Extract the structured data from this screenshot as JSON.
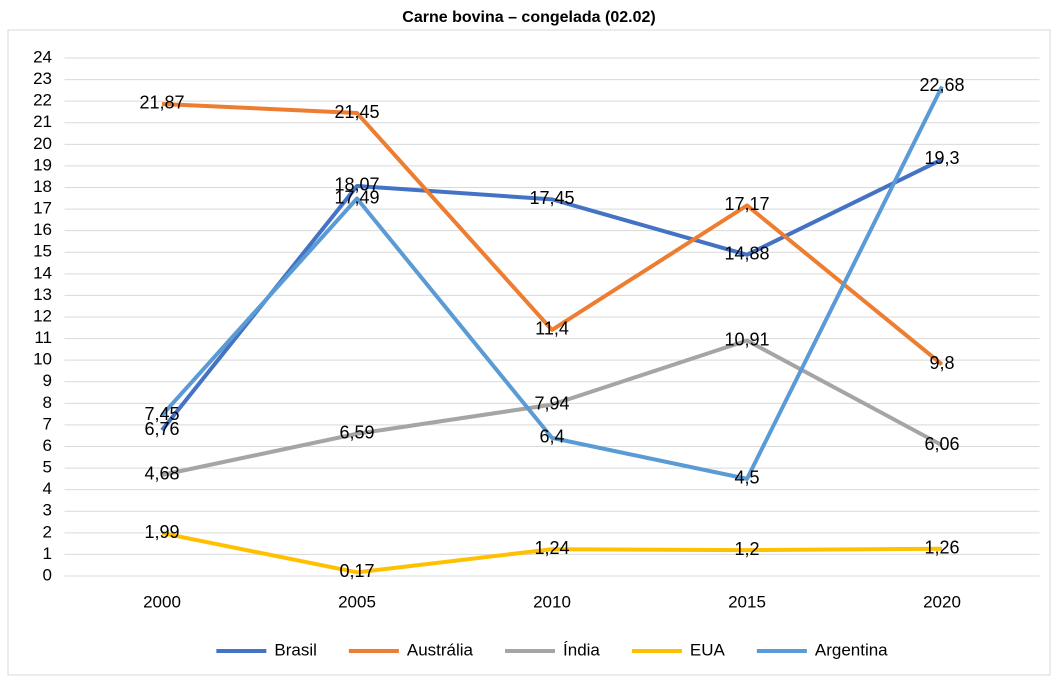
{
  "chart_data": {
    "type": "line",
    "title": "Carne bovina – congelada (02.02)",
    "categories": [
      "2000",
      "2005",
      "2010",
      "2015",
      "2020"
    ],
    "series": [
      {
        "name": "Brasil",
        "color": "#4472c4",
        "values": [
          6.76,
          18.07,
          17.45,
          14.88,
          19.3
        ],
        "value_labels": [
          "6,76",
          "18,07",
          "17,45",
          "14,88",
          "19,3"
        ]
      },
      {
        "name": "Austrália",
        "color": "#ed7d31",
        "values": [
          21.87,
          21.45,
          11.4,
          17.17,
          9.8
        ],
        "value_labels": [
          "21,87",
          "21,45",
          "11,4",
          "17,17",
          "9,8"
        ]
      },
      {
        "name": "Índia",
        "color": "#a5a5a5",
        "values": [
          4.68,
          6.59,
          7.94,
          10.91,
          6.06
        ],
        "value_labels": [
          "4,68",
          "6,59",
          "7,94",
          "10,91",
          "6,06"
        ]
      },
      {
        "name": "EUA",
        "color": "#ffc000",
        "values": [
          1.99,
          0.17,
          1.24,
          1.2,
          1.26
        ],
        "value_labels": [
          "1,99",
          "0,17",
          "1,24",
          "1,2",
          "1,26"
        ]
      },
      {
        "name": "Argentina",
        "color": "#5b9bd5",
        "values": [
          7.45,
          17.49,
          6.4,
          4.5,
          22.68
        ],
        "value_labels": [
          "7,45",
          "17,49",
          "6,4",
          "4,5",
          "22,68"
        ]
      }
    ],
    "ylim": [
      0,
      24
    ],
    "yticks": [
      0,
      1,
      2,
      3,
      4,
      5,
      6,
      7,
      8,
      9,
      10,
      11,
      12,
      13,
      14,
      15,
      16,
      17,
      18,
      19,
      20,
      21,
      22,
      23,
      24
    ],
    "grid": true,
    "legend": "bottom"
  }
}
